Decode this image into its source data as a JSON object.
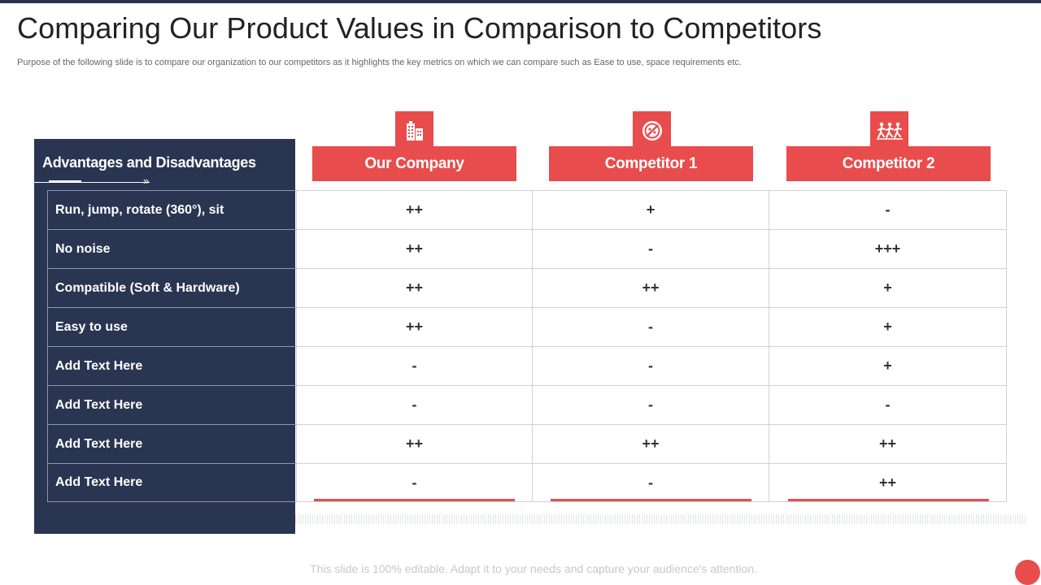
{
  "slide": {
    "title": "Comparing Our Product Values in Comparison to Competitors",
    "subtitle": "Purpose of the following slide is to compare our organization to our competitors as it highlights the key metrics on which we can compare such as Ease to use, space requirements etc.",
    "footer_note": "This slide is 100% editable. Adapt it to your needs and capture your audience's attention."
  },
  "panel": {
    "heading": "Advantages and Disadvantages"
  },
  "columns": [
    {
      "label": "Our Company",
      "icon": "building-icon"
    },
    {
      "label": "Competitor 1",
      "icon": "no-entry-icon"
    },
    {
      "label": "Competitor 2",
      "icon": "running-people-icon"
    }
  ],
  "rows": [
    {
      "label": "Run, jump, rotate (360°), sit",
      "values": [
        "++",
        "+",
        "-"
      ]
    },
    {
      "label": "No noise",
      "values": [
        "++",
        "-",
        "+++"
      ]
    },
    {
      "label": "Compatible (Soft & Hardware)",
      "values": [
        "++",
        "++",
        "+"
      ]
    },
    {
      "label": "Easy to use",
      "values": [
        "++",
        "-",
        "+"
      ]
    },
    {
      "label": "Add Text Here",
      "values": [
        "-",
        "-",
        "+"
      ]
    },
    {
      "label": "Add Text Here",
      "values": [
        "-",
        "-",
        "-"
      ]
    },
    {
      "label": "Add Text Here",
      "values": [
        "++",
        "++",
        "++"
      ]
    },
    {
      "label": "Add Text Here",
      "values": [
        "-",
        "-",
        "++"
      ]
    }
  ],
  "colors": {
    "accent": "#e84c4c",
    "navy": "#2a3551"
  }
}
